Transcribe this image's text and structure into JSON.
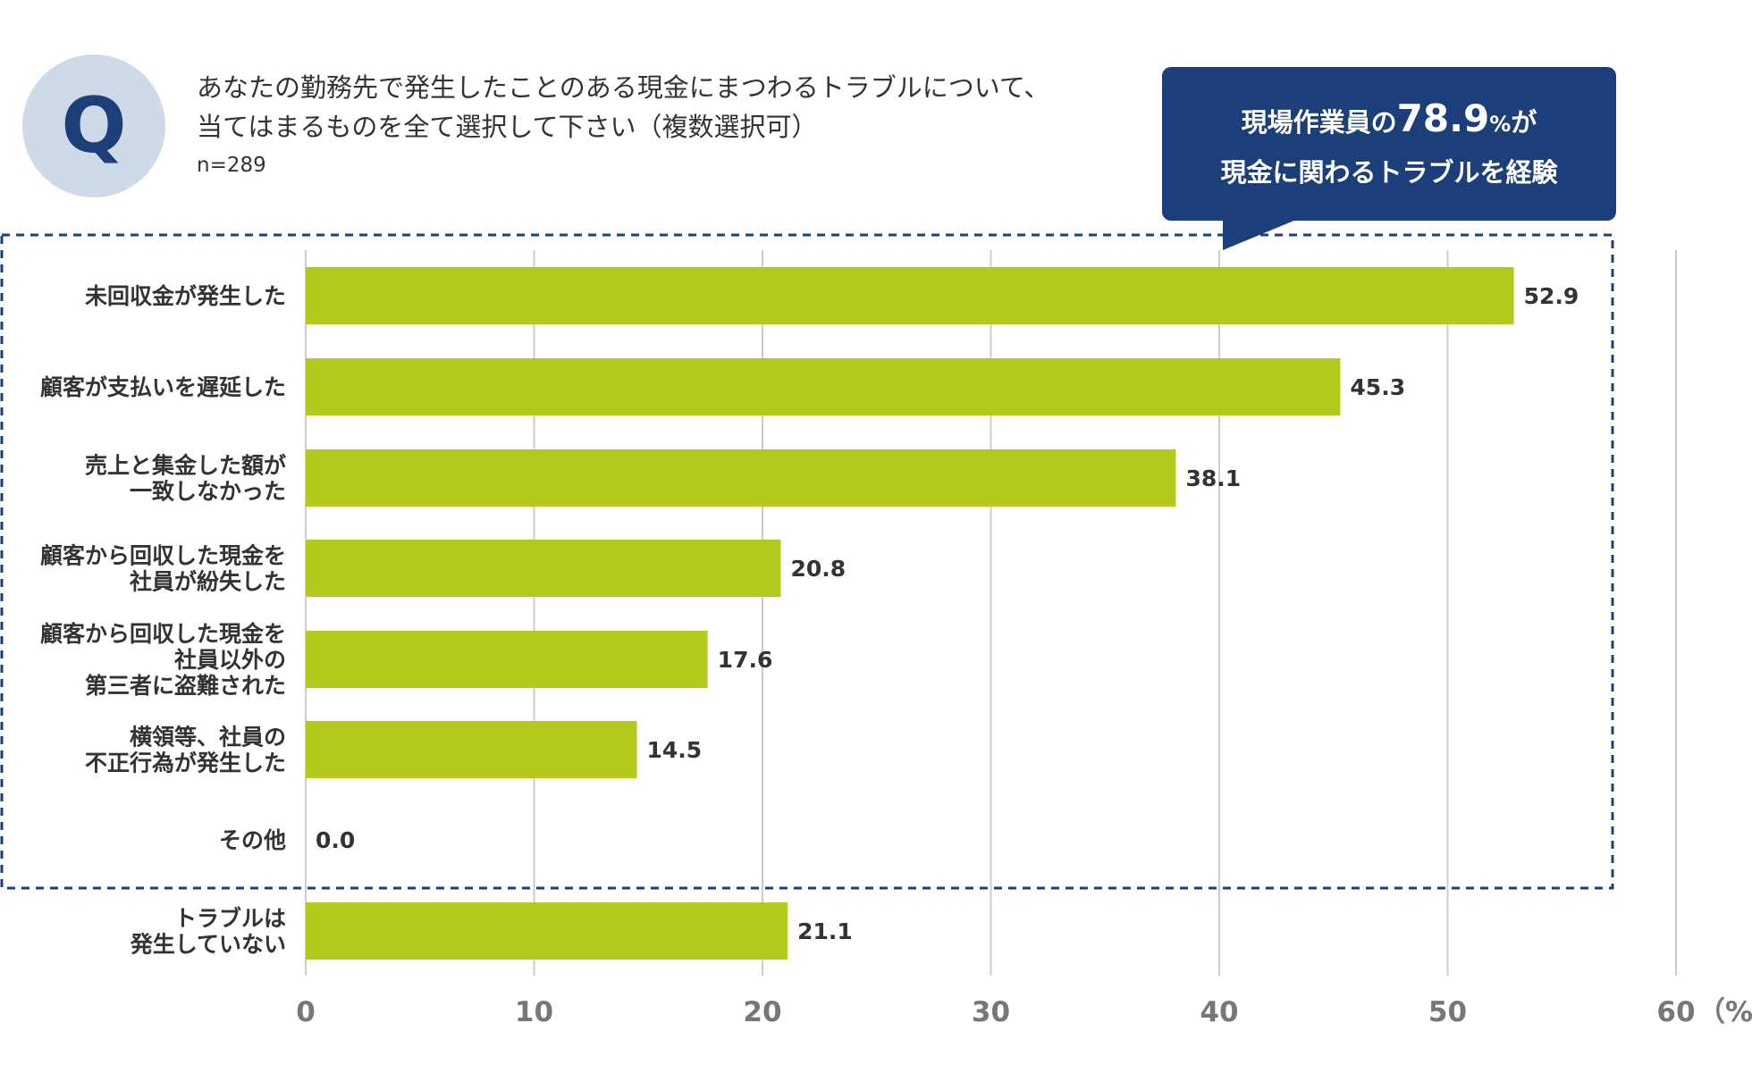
{
  "header": {
    "q_badge": "Q",
    "question_lines": [
      "あなたの勤務先で発生したことのある現金にまつわるトラブルについて、",
      "当てはまるものを全て選択して下さい（複数選択可）"
    ],
    "sample_size": "n=289"
  },
  "callout": {
    "line1_prefix": "現場作業員の",
    "line1_value": "78.9",
    "line1_unit": "%",
    "line1_suffix": "が",
    "line2": "現金に関わるトラブルを経験"
  },
  "colors": {
    "bar": "#b3c91c",
    "accent_navy": "#1c3f7a",
    "q_circle_bg": "#cfdae8",
    "grid": "#cccccc",
    "dashed_box": "#1c3f7a"
  },
  "chart_data": {
    "type": "bar",
    "orientation": "horizontal",
    "categories": [
      [
        "未回収金が発生した"
      ],
      [
        "顧客が支払いを遅延した"
      ],
      [
        "売上と集金した額が",
        "一致しなかった"
      ],
      [
        "顧客から回収した現金を",
        "社員が紛失した"
      ],
      [
        "顧客から回収した現金を",
        "社員以外の",
        "第三者に盗難された"
      ],
      [
        "横領等、社員の",
        "不正行為が発生した"
      ],
      [
        "その他"
      ],
      [
        "トラブルは",
        "発生していない"
      ]
    ],
    "values": [
      52.9,
      45.3,
      38.1,
      20.8,
      17.6,
      14.5,
      0.0,
      21.1
    ],
    "value_labels": [
      "52.9",
      "45.3",
      "38.1",
      "20.8",
      "17.6",
      "14.5",
      "0.0",
      "21.1"
    ],
    "xlim": [
      0,
      60
    ],
    "xticks": [
      0,
      10,
      20,
      30,
      40,
      50,
      60
    ],
    "xtick_labels": [
      "0",
      "10",
      "20",
      "30",
      "40",
      "50",
      "60"
    ],
    "x_unit": "（%）",
    "grid": true,
    "highlight_group": [
      0,
      1,
      2,
      3,
      4,
      5,
      6
    ]
  }
}
